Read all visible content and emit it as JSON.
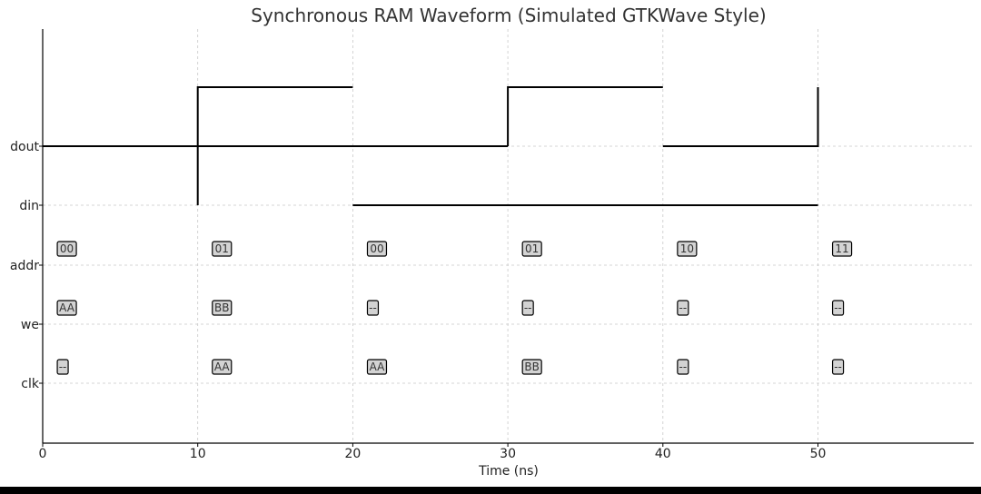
{
  "chart_data": {
    "type": "line",
    "title": "Synchronous RAM Waveform (Simulated GTKWave Style)",
    "xlabel": "Time (ns)",
    "ylabel": "",
    "xlim": [
      0,
      60
    ],
    "x_ticks": [
      0,
      10,
      20,
      30,
      40,
      50
    ],
    "y_ticks": [
      "dout",
      "din",
      "addr",
      "we",
      "clk"
    ],
    "grid": true,
    "steps": [
      {
        "row": "dout",
        "points": [
          [
            0,
            0
          ],
          [
            10,
            0
          ],
          [
            10,
            1
          ],
          [
            20,
            1
          ]
        ]
      },
      {
        "row": "dout",
        "points": [
          [
            30,
            0
          ],
          [
            30,
            1
          ],
          [
            40,
            1
          ]
        ]
      },
      {
        "row": "dout",
        "points": [
          [
            40,
            0
          ],
          [
            50,
            0
          ],
          [
            50,
            1
          ]
        ]
      },
      {
        "row": "dout",
        "points": [
          [
            0,
            0
          ],
          [
            30,
            0
          ]
        ]
      },
      {
        "row": "din",
        "points": [
          [
            10,
            1
          ],
          [
            10,
            0
          ]
        ]
      },
      {
        "row": "din",
        "points": [
          [
            20,
            0
          ],
          [
            50,
            0
          ]
        ]
      }
    ],
    "box_rows": [
      {
        "row": "addr",
        "labels": [
          {
            "x": 1,
            "text": "00"
          },
          {
            "x": 11,
            "text": "01"
          },
          {
            "x": 21,
            "text": "00"
          },
          {
            "x": 31,
            "text": "01"
          },
          {
            "x": 41,
            "text": "10"
          },
          {
            "x": 51,
            "text": "11"
          }
        ]
      },
      {
        "row": "we",
        "labels": [
          {
            "x": 1,
            "text": "AA"
          },
          {
            "x": 11,
            "text": "BB"
          },
          {
            "x": 21,
            "text": "--"
          },
          {
            "x": 31,
            "text": "--"
          },
          {
            "x": 41,
            "text": "--"
          },
          {
            "x": 51,
            "text": "--"
          }
        ]
      },
      {
        "row": "clk",
        "labels": [
          {
            "x": 1,
            "text": "--"
          },
          {
            "x": 11,
            "text": "AA"
          },
          {
            "x": 21,
            "text": "AA"
          },
          {
            "x": 31,
            "text": "BB"
          },
          {
            "x": 41,
            "text": "--"
          },
          {
            "x": 51,
            "text": "--"
          }
        ]
      }
    ]
  }
}
